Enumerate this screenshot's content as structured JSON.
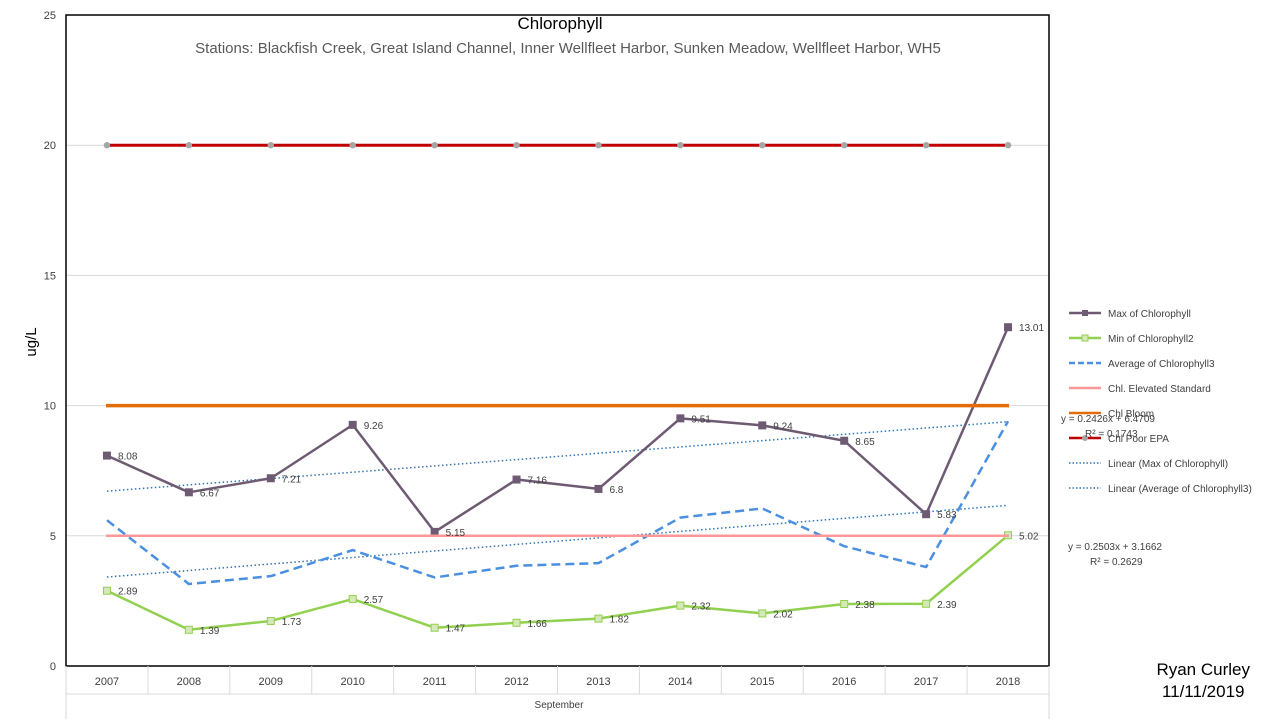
{
  "chart_data": {
    "type": "line",
    "title": "Chlorophyll",
    "subtitle": "Stations: Blackfish Creek, Great Island Channel, Inner Wellfleet Harbor, Sunken Meadow, Wellfleet Harbor, WH5",
    "ylabel": "ug/L",
    "xlabel": "September",
    "ylim": [
      0,
      25
    ],
    "yticks": [
      "0",
      "5",
      "10",
      "15",
      "20",
      "25"
    ],
    "categories": [
      "2007",
      "2008",
      "2009",
      "2010",
      "2011",
      "2012",
      "2013",
      "2014",
      "2015",
      "2016",
      "2017",
      "2018"
    ],
    "series": [
      {
        "name": "Max of Chlorophyll",
        "color": "#6e5b73",
        "style": "solid-square",
        "values": [
          8.08,
          6.67,
          7.21,
          9.26,
          5.15,
          7.16,
          6.8,
          9.51,
          9.24,
          8.65,
          5.83,
          13.01
        ],
        "labels": [
          "8.08",
          "6.67",
          "7.21",
          "9.26",
          "5.15",
          "7.16",
          "6.8",
          "9.51",
          "9.24",
          "8.65",
          "5.83",
          "13.01"
        ]
      },
      {
        "name": "Min of Chlorophyll2",
        "color": "#92d050",
        "style": "solid-square-light",
        "values": [
          2.89,
          1.39,
          1.73,
          2.57,
          1.47,
          1.66,
          1.82,
          2.32,
          2.02,
          2.38,
          2.39,
          5.02
        ],
        "labels": [
          "2.89",
          "1.39",
          "1.73",
          "2.57",
          "1.47",
          "1.66",
          "1.82",
          "2.32",
          "2.02",
          "2.38",
          "2.39",
          "5.02"
        ]
      },
      {
        "name": "Average of Chlorophyll3",
        "color": "#4a8fe0",
        "style": "dashed",
        "values": [
          5.6,
          3.15,
          3.45,
          4.45,
          3.4,
          3.85,
          3.95,
          5.7,
          6.05,
          4.6,
          3.8,
          9.4
        ]
      },
      {
        "name": "Chl. Elevated Standard",
        "color": "#ff9999",
        "style": "flat",
        "values": [
          5,
          5,
          5,
          5,
          5,
          5,
          5,
          5,
          5,
          5,
          5,
          5
        ]
      },
      {
        "name": "Chl Bloom",
        "color": "#e36c0a",
        "style": "flat-thick",
        "values": [
          10,
          10,
          10,
          10,
          10,
          10,
          10,
          10,
          10,
          10,
          10,
          10
        ]
      },
      {
        "name": "Chl Poor EPA",
        "color": "#c00000",
        "style": "flat-dots",
        "values": [
          20,
          20,
          20,
          20,
          20,
          20,
          20,
          20,
          20,
          20,
          20,
          20
        ]
      }
    ],
    "trendlines": [
      {
        "name": "Linear (Max of Chlorophyll)",
        "color": "#2e75b6",
        "slope": 0.2426,
        "intercept": 6.4709,
        "equation": "y = 0.2426x + 6.4709",
        "r2": "R² = 0.1743"
      },
      {
        "name": "Linear (Average of Chlorophyll3)",
        "color": "#2e75b6",
        "slope": 0.2503,
        "intercept": 3.1662,
        "equation": "y = 0.2503x + 3.1662",
        "r2": "R² = 0.2629"
      }
    ],
    "legend_placement": "right",
    "grid": true
  },
  "signature": {
    "name": "Ryan Curley",
    "date": "11/11/2019"
  }
}
